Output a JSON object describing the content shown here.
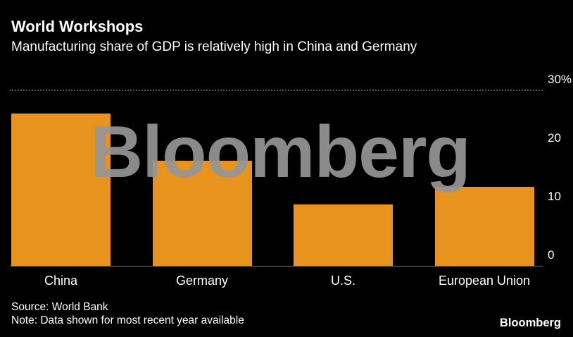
{
  "header": {
    "title": "World Workshops",
    "subtitle": "Manufacturing share of GDP is relatively high in China and Germany"
  },
  "chart_data": {
    "type": "bar",
    "title": "World Workshops",
    "subtitle": "Manufacturing share of GDP is relatively high in China and Germany",
    "categories": [
      "China",
      "Germany",
      "U.S.",
      "European Union"
    ],
    "values": [
      26,
      18,
      10.5,
      13.5
    ],
    "unit": "% of GDP",
    "xlabel": "",
    "ylabel": "",
    "ylim": [
      0,
      30
    ],
    "yticks": [
      0,
      10,
      20,
      30
    ],
    "ytick_labels": [
      "0",
      "10",
      "20",
      "30%"
    ],
    "grid": "dotted gridline at 30, solid baseline at 0, y-axis labels on right",
    "legend": "none",
    "bar_color": "#E8931E"
  },
  "watermark": {
    "text": "Bloomberg",
    "color": "#969696"
  },
  "footer": {
    "source": "Source: World Bank",
    "note": "Note: Data shown for most recent year available",
    "brand": "Bloomberg"
  },
  "colors": {
    "background": "#000000",
    "text": "#FFFFFF",
    "bar": "#E8931E",
    "gridline": "#4E4E4E",
    "baseline": "#757575",
    "watermark": "#969696"
  }
}
